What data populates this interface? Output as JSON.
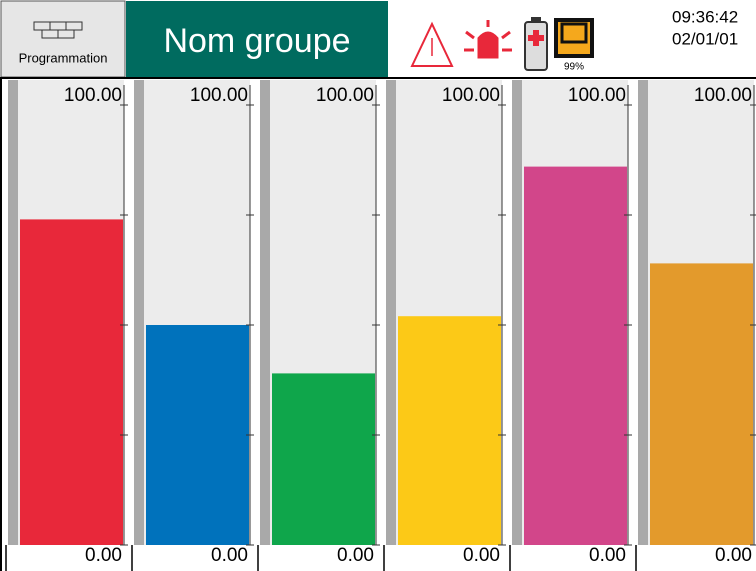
{
  "header": {
    "button_label": "Programmation",
    "group_name": "Nom groupe",
    "battery": "99%",
    "time": "09:36:42",
    "date": "02/01/01"
  },
  "chart_data": {
    "type": "bar",
    "values": [
      74,
      50,
      39,
      52,
      86,
      64
    ],
    "colors": [
      "#e8283a",
      "#0072bc",
      "#0fa64b",
      "#fcc917",
      "#d2468a",
      "#e39a2c"
    ],
    "ylim": [
      0,
      100
    ],
    "yticks": [
      {
        "value": 0,
        "label": "0.00"
      },
      {
        "value": 100,
        "label": "100.00"
      }
    ],
    "minor_ticks": [
      25,
      50,
      75
    ]
  }
}
